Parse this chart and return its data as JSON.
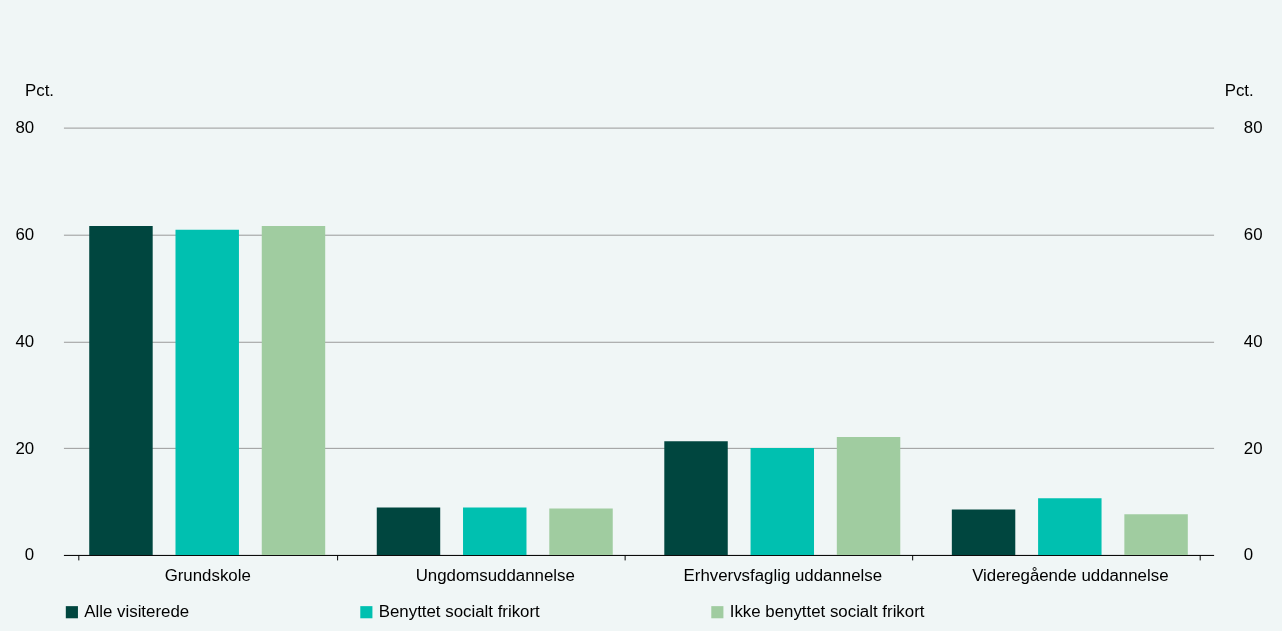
{
  "chart_data": {
    "type": "bar",
    "categories": [
      "Grundskole",
      "Ungdomsuddannelse",
      "Erhvervsfaglig uddannelse",
      "Videregående uddannelse"
    ],
    "series": [
      {
        "name": "Alle visiterede",
        "color": "#00463f",
        "values": [
          61.6,
          8.9,
          21.3,
          8.5
        ]
      },
      {
        "name": "Benyttet socialt frikort",
        "color": "#00c0b0",
        "values": [
          60.9,
          8.9,
          20.0,
          10.6
        ]
      },
      {
        "name": "Ikke benyttet socialt frikort",
        "color": "#a0cca0",
        "values": [
          61.6,
          8.7,
          22.1,
          7.6
        ]
      }
    ],
    "ylabel": "Pct.",
    "y2label": "Pct.",
    "ylim": [
      0,
      80
    ],
    "yticks": [
      0,
      20,
      40,
      60,
      80
    ],
    "y2lim": [
      0,
      80
    ],
    "y2ticks": [
      0,
      20,
      40,
      60,
      80
    ],
    "grid": "y",
    "legend": "bottom"
  }
}
